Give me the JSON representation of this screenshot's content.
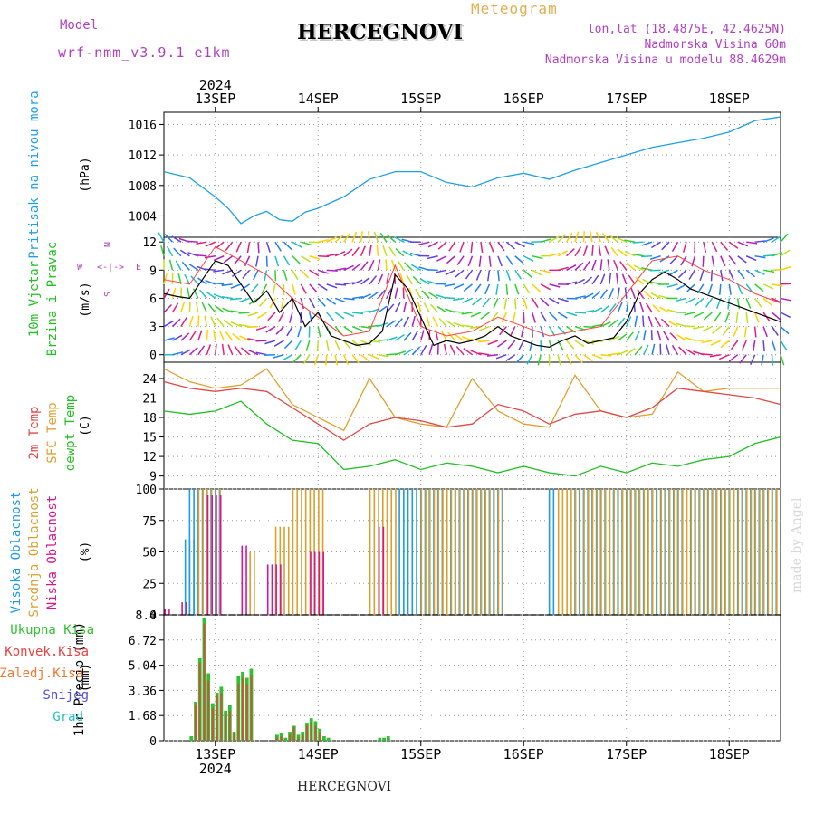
{
  "header": {
    "model_label": "Model",
    "model_name": "wrf-nmm_v3.9.1 e1km",
    "title": "HERCEGNOVI",
    "meteogram_label": "Meteogram",
    "lonlat": "lon,lat (18.4875E, 42.4625N)",
    "altitude": "Nadmorska Visina 60m",
    "model_altitude": "Nadmorska Visina u modelu 88.4629m",
    "watermark": "made by Angel",
    "bottom_title": "HERCEGNOVI"
  },
  "colors": {
    "pressure": "#1ea0e6",
    "temp2m": "#e04848",
    "sfc_temp": "#e0a030",
    "dewpt": "#22c022",
    "wind_speed": "#000000",
    "gust": "#ff4040",
    "cloud_high": "#1e9be6",
    "cloud_mid": "#d8a030",
    "cloud_low": "#d01890",
    "precip_total": "#30c030",
    "precip_conv": "#e84040",
    "precip_frozen": "#f07830",
    "precip_snow": "#5050e0",
    "precip_graupel": "#20c0c0",
    "wind_label": "#20c020",
    "wind_label2": "#b040c0"
  },
  "time_axis": {
    "year": "2024",
    "days": [
      "13SEP",
      "14SEP",
      "15SEP",
      "16SEP",
      "17SEP",
      "18SEP"
    ],
    "start_hour_before_first_day": 12,
    "total_hours": 144
  },
  "legend": {
    "compass": [
      "N",
      "S",
      "W",
      "E",
      "<-|->",
      "^",
      "v"
    ],
    "wind_side": [
      "W",
      "E",
      "N",
      "S"
    ]
  },
  "chart_data": [
    {
      "type": "line",
      "panel": "pressure",
      "ylabel": "Pritisak na nivou mora",
      "unit": "(hPa)",
      "yticks": [
        1004,
        1008,
        1012,
        1016
      ],
      "ylim": [
        1001.2,
        1017.6
      ],
      "series": [
        {
          "x_hours": [
            0,
            6,
            12,
            15,
            18,
            21,
            24,
            27,
            30,
            33,
            36,
            42,
            48,
            54,
            60,
            66,
            72,
            78,
            84,
            90,
            96,
            102,
            108,
            114,
            120,
            126,
            132,
            138,
            144
          ],
          "values": [
            1009.8,
            1009.0,
            1006.5,
            1005.0,
            1003.0,
            1004.0,
            1004.6,
            1003.5,
            1003.3,
            1004.5,
            1005.0,
            1006.5,
            1008.8,
            1009.8,
            1009.8,
            1008.4,
            1007.8,
            1009.0,
            1009.6,
            1008.8,
            1010.0,
            1011.0,
            1012.0,
            1013.0,
            1013.6,
            1014.2,
            1015.0,
            1016.5,
            1017.0
          ]
        }
      ]
    },
    {
      "type": "line",
      "panel": "wind",
      "ylabel": "10m Vjetar",
      "ylabel2": "Brzina i Pravac",
      "unit": "(m/s)",
      "yticks": [
        0,
        3,
        6,
        9,
        12
      ],
      "ylim": [
        -0.8,
        12.5
      ],
      "series": [
        {
          "name": "speed",
          "x_hours": [
            0,
            3,
            6,
            9,
            12,
            15,
            18,
            21,
            24,
            27,
            30,
            33,
            36,
            39,
            42,
            45,
            48,
            51,
            54,
            57,
            60,
            63,
            66,
            69,
            72,
            75,
            78,
            81,
            84,
            87,
            90,
            93,
            96,
            99,
            102,
            105,
            108,
            111,
            114,
            117,
            120,
            123,
            126,
            129,
            132,
            135,
            138,
            141,
            144
          ],
          "values": [
            6.5,
            6.2,
            6.0,
            8.0,
            10.0,
            9.5,
            7.5,
            5.5,
            6.8,
            4.5,
            6.0,
            3.0,
            4.5,
            2.0,
            1.5,
            1.0,
            1.2,
            2.5,
            8.5,
            7.0,
            4.0,
            1.0,
            1.5,
            1.2,
            1.5,
            2.0,
            3.0,
            2.0,
            1.5,
            1.0,
            0.8,
            1.5,
            2.0,
            1.2,
            1.5,
            1.8,
            3.5,
            6.5,
            8.0,
            8.8,
            8.0,
            7.0,
            6.5,
            6.0,
            5.5,
            5.0,
            4.5,
            4.0,
            3.5
          ]
        },
        {
          "name": "gust",
          "x_hours": [
            0,
            6,
            12,
            18,
            24,
            30,
            36,
            42,
            48,
            54,
            60,
            66,
            72,
            78,
            84,
            90,
            96,
            102,
            108,
            114,
            120,
            126,
            132,
            138,
            144
          ],
          "values": [
            8.0,
            7.5,
            11.5,
            10.0,
            8.5,
            6.0,
            4.0,
            2.0,
            2.5,
            9.5,
            3.0,
            2.0,
            2.5,
            4.0,
            3.0,
            2.0,
            2.5,
            3.0,
            6.5,
            10.0,
            10.5,
            9.0,
            8.0,
            6.5,
            5.5
          ]
        }
      ]
    },
    {
      "type": "line",
      "panel": "temperature",
      "ylabel": "2m Temp",
      "ylabel2": "SFC Temp",
      "ylabel3": "dewpt Temp",
      "unit": "(C)",
      "yticks": [
        9,
        12,
        15,
        18,
        21,
        24
      ],
      "ylim": [
        7,
        26.5
      ],
      "series": [
        {
          "name": "2m Temp",
          "x_hours": [
            0,
            6,
            12,
            18,
            24,
            30,
            36,
            42,
            48,
            54,
            60,
            66,
            72,
            78,
            84,
            90,
            96,
            102,
            108,
            114,
            120,
            126,
            132,
            138,
            144
          ],
          "values": [
            23.5,
            22.5,
            22.0,
            22.5,
            22.0,
            19.5,
            17.0,
            14.5,
            17.0,
            18.0,
            17.5,
            16.5,
            17.0,
            20.0,
            19.0,
            17.0,
            18.5,
            19.0,
            18.0,
            19.5,
            22.5,
            22.0,
            21.5,
            21.0,
            20.0
          ]
        },
        {
          "name": "SFC Temp",
          "x_hours": [
            0,
            6,
            12,
            18,
            24,
            30,
            36,
            42,
            48,
            54,
            60,
            66,
            72,
            78,
            84,
            90,
            96,
            102,
            108,
            114,
            120,
            126,
            132,
            138,
            144
          ],
          "values": [
            25.5,
            23.5,
            22.5,
            23.0,
            25.5,
            20.0,
            18.0,
            16.0,
            24.0,
            18.0,
            17.0,
            16.5,
            24.0,
            19.0,
            17.0,
            16.5,
            24.5,
            19.0,
            18.0,
            18.5,
            25.0,
            22.0,
            22.5,
            22.5,
            22.5
          ]
        },
        {
          "name": "dewpt Temp",
          "x_hours": [
            0,
            6,
            12,
            18,
            24,
            30,
            36,
            42,
            48,
            54,
            60,
            66,
            72,
            78,
            84,
            90,
            96,
            102,
            108,
            114,
            120,
            126,
            132,
            138,
            144
          ],
          "values": [
            19.0,
            18.5,
            19.0,
            20.5,
            17.0,
            14.5,
            14.0,
            10.0,
            10.5,
            11.5,
            10.0,
            11.0,
            10.5,
            9.5,
            10.5,
            9.5,
            9.0,
            10.5,
            9.5,
            11.0,
            10.5,
            11.5,
            12.0,
            14.0,
            15.0
          ]
        }
      ]
    },
    {
      "type": "bar",
      "panel": "clouds",
      "ylabel": "Visoka Oblacnost",
      "ylabel2": "Srednja Oblacnost",
      "ylabel3": "Niska Oblacnost",
      "unit": "(%)",
      "yticks": [
        0,
        25,
        50,
        75,
        100
      ],
      "ylim": [
        0,
        100
      ],
      "series": [
        {
          "name": "high",
          "segments": [
            [
              5,
              8,
              60
            ],
            [
              6,
              14,
              100
            ],
            [
              55,
              60,
              100
            ],
            [
              60,
              80,
              100
            ],
            [
              90,
              92,
              100
            ],
            [
              96,
              144,
              100
            ]
          ]
        },
        {
          "name": "mid",
          "segments": [
            [
              8,
              14,
              100
            ],
            [
              20,
              22,
              50
            ],
            [
              26,
              30,
              70
            ],
            [
              30,
              38,
              100
            ],
            [
              48,
              55,
              100
            ],
            [
              60,
              80,
              100
            ],
            [
              92,
              95,
              100
            ],
            [
              95,
              144,
              100
            ]
          ]
        },
        {
          "name": "low",
          "segments": [
            [
              0,
              2,
              5
            ],
            [
              4,
              6,
              10
            ],
            [
              10,
              14,
              95
            ],
            [
              18,
              20,
              55
            ],
            [
              24,
              28,
              40
            ],
            [
              34,
              38,
              50
            ],
            [
              50,
              52,
              70
            ]
          ]
        }
      ]
    },
    {
      "type": "bar",
      "panel": "precip",
      "ylabel": "1hr Precip",
      "unit": "(mm)",
      "yticks": [
        0,
        1.68,
        3.36,
        5.04,
        6.72,
        8.4
      ],
      "ylim": [
        0,
        8.4
      ],
      "legend": [
        "Ukupna Kisa",
        "Konvek.Kisa",
        "Zaledj.Kisa",
        "Snijeg",
        "Grad"
      ],
      "series": [
        {
          "name": "total",
          "x_hours": [
            6,
            7,
            8,
            9,
            10,
            11,
            12,
            13,
            14,
            15,
            16,
            17,
            18,
            19,
            20,
            26,
            27,
            28,
            29,
            30,
            31,
            32,
            33,
            34,
            35,
            36,
            37,
            38,
            50,
            51,
            52
          ],
          "values": [
            0.3,
            2.6,
            5.5,
            8.2,
            4.5,
            2.5,
            3.2,
            3.6,
            2.0,
            2.4,
            0.6,
            4.3,
            4.6,
            4.2,
            4.8,
            0.4,
            0.5,
            0.2,
            0.6,
            1.0,
            0.4,
            0.6,
            1.2,
            1.5,
            1.3,
            0.8,
            0.3,
            0.2,
            0.2,
            0.2,
            0.3
          ]
        },
        {
          "name": "convective",
          "x_hours": [
            7,
            8,
            9,
            10,
            11,
            12,
            13,
            14,
            15,
            16,
            17,
            18,
            19,
            20,
            26,
            27,
            29,
            30,
            31,
            32,
            33,
            34,
            35,
            36
          ],
          "values": [
            2.4,
            5.2,
            7.8,
            4.0,
            2.2,
            3.0,
            3.2,
            1.8,
            2.0,
            0.5,
            3.8,
            4.2,
            3.8,
            4.4,
            0.2,
            0.3,
            0.4,
            0.9,
            0.2,
            0.4,
            1.0,
            1.2,
            1.0,
            0.5
          ]
        }
      ]
    }
  ]
}
